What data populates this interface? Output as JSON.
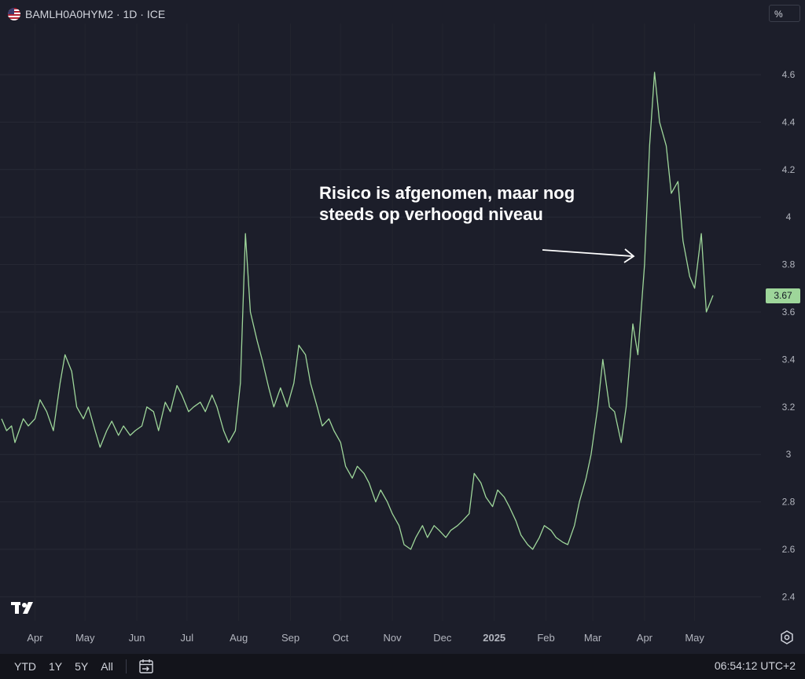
{
  "header": {
    "symbol_line": "BAMLH0A0HYM2 · 1D · ICE",
    "flag_icon": "us-flag-icon"
  },
  "unit_label": "%",
  "annotation": {
    "line1": "Risico is afgenomen, maar nog",
    "line2": "steeds op verhoogd niveau"
  },
  "last_price": "3.67",
  "range_buttons": [
    "YTD",
    "1Y",
    "5Y",
    "All"
  ],
  "clock": "06:54:12 UTC+2",
  "colors": {
    "background": "#1c1e2a",
    "line": "#9ed69a",
    "text": "#d1d4dc"
  },
  "chart_data": {
    "type": "line",
    "title": "",
    "xlabel": "",
    "ylabel": "",
    "ylim": [
      2.28,
      4.82
    ],
    "y_ticks": [
      2.4,
      2.6,
      2.8,
      3,
      3.2,
      3.4,
      3.6,
      3.8,
      4,
      4.2,
      4.4,
      4.6
    ],
    "y_tick_labels": [
      "2.4",
      "2.6",
      "2.8",
      "3",
      "3.2",
      "3.4",
      "3.6",
      "3.8",
      "4",
      "4.2",
      "4.4",
      "4.6"
    ],
    "x_ticks": [
      "2024-04-01",
      "2024-05-01",
      "2024-06-01",
      "2024-07-01",
      "2024-08-01",
      "2024-09-01",
      "2024-10-01",
      "2024-11-01",
      "2024-12-01",
      "2025-01-01",
      "2025-02-01",
      "2025-03-01",
      "2025-04-01",
      "2025-05-01"
    ],
    "x_tick_labels": [
      "Apr",
      "May",
      "Jun",
      "Jul",
      "Aug",
      "Sep",
      "Oct",
      "Nov",
      "Dec",
      "2025",
      "Feb",
      "Mar",
      "Apr",
      "May"
    ],
    "grid": true,
    "legend": "none",
    "series": [
      {
        "color": "#9ed69a",
        "points": [
          [
            "2024-03-12",
            3.15
          ],
          [
            "2024-03-15",
            3.1
          ],
          [
            "2024-03-18",
            3.12
          ],
          [
            "2024-03-20",
            3.05
          ],
          [
            "2024-03-25",
            3.15
          ],
          [
            "2024-03-28",
            3.12
          ],
          [
            "2024-04-01",
            3.15
          ],
          [
            "2024-04-04",
            3.23
          ],
          [
            "2024-04-08",
            3.18
          ],
          [
            "2024-04-12",
            3.1
          ],
          [
            "2024-04-16",
            3.3
          ],
          [
            "2024-04-19",
            3.42
          ],
          [
            "2024-04-23",
            3.35
          ],
          [
            "2024-04-26",
            3.2
          ],
          [
            "2024-04-30",
            3.15
          ],
          [
            "2024-05-03",
            3.2
          ],
          [
            "2024-05-07",
            3.1
          ],
          [
            "2024-05-10",
            3.03
          ],
          [
            "2024-05-14",
            3.1
          ],
          [
            "2024-05-17",
            3.14
          ],
          [
            "2024-05-21",
            3.08
          ],
          [
            "2024-05-24",
            3.12
          ],
          [
            "2024-05-28",
            3.08
          ],
          [
            "2024-05-31",
            3.1
          ],
          [
            "2024-06-04",
            3.12
          ],
          [
            "2024-06-07",
            3.2
          ],
          [
            "2024-06-11",
            3.18
          ],
          [
            "2024-06-14",
            3.1
          ],
          [
            "2024-06-18",
            3.22
          ],
          [
            "2024-06-21",
            3.18
          ],
          [
            "2024-06-25",
            3.29
          ],
          [
            "2024-06-28",
            3.25
          ],
          [
            "2024-07-02",
            3.18
          ],
          [
            "2024-07-05",
            3.2
          ],
          [
            "2024-07-09",
            3.22
          ],
          [
            "2024-07-12",
            3.18
          ],
          [
            "2024-07-16",
            3.25
          ],
          [
            "2024-07-19",
            3.2
          ],
          [
            "2024-07-23",
            3.1
          ],
          [
            "2024-07-26",
            3.05
          ],
          [
            "2024-07-30",
            3.1
          ],
          [
            "2024-08-02",
            3.3
          ],
          [
            "2024-08-05",
            3.93
          ],
          [
            "2024-08-08",
            3.6
          ],
          [
            "2024-08-12",
            3.48
          ],
          [
            "2024-08-15",
            3.4
          ],
          [
            "2024-08-19",
            3.28
          ],
          [
            "2024-08-22",
            3.2
          ],
          [
            "2024-08-26",
            3.28
          ],
          [
            "2024-08-30",
            3.2
          ],
          [
            "2024-09-03",
            3.3
          ],
          [
            "2024-09-06",
            3.46
          ],
          [
            "2024-09-10",
            3.42
          ],
          [
            "2024-09-13",
            3.3
          ],
          [
            "2024-09-17",
            3.2
          ],
          [
            "2024-09-20",
            3.12
          ],
          [
            "2024-09-24",
            3.15
          ],
          [
            "2024-09-27",
            3.1
          ],
          [
            "2024-10-01",
            3.05
          ],
          [
            "2024-10-04",
            2.95
          ],
          [
            "2024-10-08",
            2.9
          ],
          [
            "2024-10-11",
            2.95
          ],
          [
            "2024-10-15",
            2.92
          ],
          [
            "2024-10-18",
            2.88
          ],
          [
            "2024-10-22",
            2.8
          ],
          [
            "2024-10-25",
            2.85
          ],
          [
            "2024-10-29",
            2.8
          ],
          [
            "2024-11-01",
            2.75
          ],
          [
            "2024-11-05",
            2.7
          ],
          [
            "2024-11-08",
            2.62
          ],
          [
            "2024-11-12",
            2.6
          ],
          [
            "2024-11-15",
            2.65
          ],
          [
            "2024-11-19",
            2.7
          ],
          [
            "2024-11-22",
            2.65
          ],
          [
            "2024-11-26",
            2.7
          ],
          [
            "2024-11-29",
            2.68
          ],
          [
            "2024-12-03",
            2.65
          ],
          [
            "2024-12-06",
            2.68
          ],
          [
            "2024-12-10",
            2.7
          ],
          [
            "2024-12-13",
            2.72
          ],
          [
            "2024-12-17",
            2.75
          ],
          [
            "2024-12-20",
            2.92
          ],
          [
            "2024-12-24",
            2.88
          ],
          [
            "2024-12-27",
            2.82
          ],
          [
            "2024-12-31",
            2.78
          ],
          [
            "2025-01-03",
            2.85
          ],
          [
            "2025-01-07",
            2.82
          ],
          [
            "2025-01-10",
            2.78
          ],
          [
            "2025-01-14",
            2.72
          ],
          [
            "2025-01-17",
            2.66
          ],
          [
            "2025-01-21",
            2.62
          ],
          [
            "2025-01-24",
            2.6
          ],
          [
            "2025-01-28",
            2.65
          ],
          [
            "2025-01-31",
            2.7
          ],
          [
            "2025-02-04",
            2.68
          ],
          [
            "2025-02-07",
            2.65
          ],
          [
            "2025-02-11",
            2.63
          ],
          [
            "2025-02-14",
            2.62
          ],
          [
            "2025-02-18",
            2.7
          ],
          [
            "2025-02-21",
            2.8
          ],
          [
            "2025-02-25",
            2.9
          ],
          [
            "2025-02-28",
            3.0
          ],
          [
            "2025-03-04",
            3.2
          ],
          [
            "2025-03-07",
            3.4
          ],
          [
            "2025-03-11",
            3.2
          ],
          [
            "2025-03-14",
            3.18
          ],
          [
            "2025-03-18",
            3.05
          ],
          [
            "2025-03-21",
            3.2
          ],
          [
            "2025-03-25",
            3.55
          ],
          [
            "2025-03-28",
            3.42
          ],
          [
            "2025-04-01",
            3.8
          ],
          [
            "2025-04-04",
            4.3
          ],
          [
            "2025-04-07",
            4.61
          ],
          [
            "2025-04-10",
            4.4
          ],
          [
            "2025-04-14",
            4.3
          ],
          [
            "2025-04-17",
            4.1
          ],
          [
            "2025-04-21",
            4.15
          ],
          [
            "2025-04-24",
            3.9
          ],
          [
            "2025-04-28",
            3.75
          ],
          [
            "2025-05-01",
            3.7
          ],
          [
            "2025-05-05",
            3.93
          ],
          [
            "2025-05-08",
            3.6
          ],
          [
            "2025-05-12",
            3.67
          ]
        ]
      }
    ]
  }
}
